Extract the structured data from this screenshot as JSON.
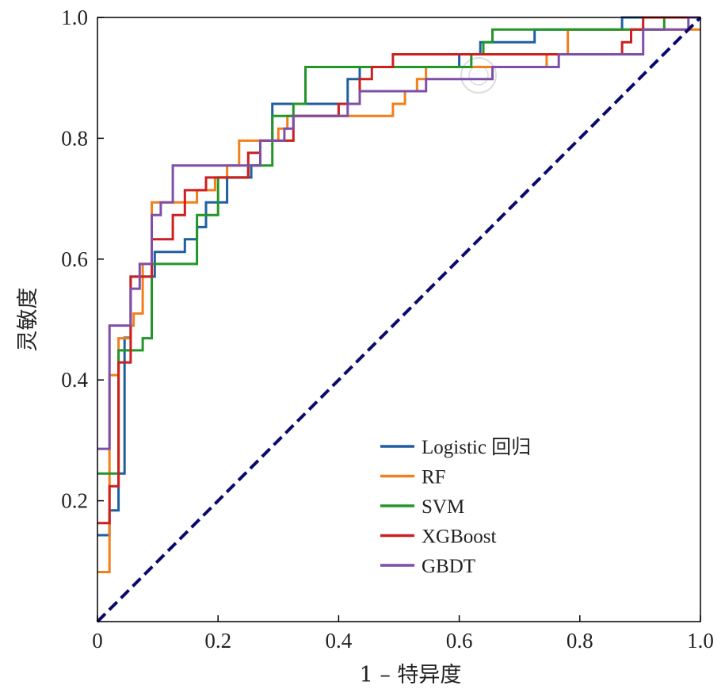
{
  "chart_data": {
    "type": "line",
    "title": "",
    "xlabel": "1 – 特异度",
    "ylabel": "灵敏度",
    "xlim": [
      0,
      1
    ],
    "ylim": [
      0,
      1
    ],
    "grid": false,
    "legend_position": "lower-right",
    "x_ticks": [
      {
        "value": 0,
        "label": "0"
      },
      {
        "value": 0.2,
        "label": "0.2"
      },
      {
        "value": 0.4,
        "label": "0.4"
      },
      {
        "value": 0.6,
        "label": "0.6"
      },
      {
        "value": 0.8,
        "label": "0.8"
      },
      {
        "value": 1.0,
        "label": "1.0"
      }
    ],
    "y_ticks": [
      {
        "value": 0.2,
        "label": "0.2"
      },
      {
        "value": 0.4,
        "label": "0.4"
      },
      {
        "value": 0.6,
        "label": "0.6"
      },
      {
        "value": 0.8,
        "label": "0.8"
      },
      {
        "value": 1.0,
        "label": "1.0"
      }
    ],
    "reference_line": {
      "x": [
        0,
        1
      ],
      "y": [
        0,
        1
      ],
      "color": "#0a0a6e",
      "style": "dashed"
    },
    "series": [
      {
        "name": "Logistic 回归",
        "color": "#1f5fa0",
        "points": [
          [
            0.0,
            0.143
          ],
          [
            0.02,
            0.143
          ],
          [
            0.02,
            0.184
          ],
          [
            0.035,
            0.184
          ],
          [
            0.035,
            0.245
          ],
          [
            0.045,
            0.245
          ],
          [
            0.045,
            0.47
          ],
          [
            0.055,
            0.47
          ],
          [
            0.055,
            0.571
          ],
          [
            0.075,
            0.571
          ],
          [
            0.075,
            0.571
          ],
          [
            0.095,
            0.571
          ],
          [
            0.095,
            0.612
          ],
          [
            0.145,
            0.612
          ],
          [
            0.145,
            0.633
          ],
          [
            0.165,
            0.633
          ],
          [
            0.165,
            0.653
          ],
          [
            0.18,
            0.653
          ],
          [
            0.18,
            0.694
          ],
          [
            0.215,
            0.694
          ],
          [
            0.215,
            0.735
          ],
          [
            0.255,
            0.735
          ],
          [
            0.255,
            0.755
          ],
          [
            0.27,
            0.755
          ],
          [
            0.27,
            0.796
          ],
          [
            0.29,
            0.796
          ],
          [
            0.29,
            0.857
          ],
          [
            0.345,
            0.857
          ],
          [
            0.345,
            0.857
          ],
          [
            0.415,
            0.857
          ],
          [
            0.415,
            0.898
          ],
          [
            0.435,
            0.898
          ],
          [
            0.435,
            0.918
          ],
          [
            0.6,
            0.918
          ],
          [
            0.6,
            0.939
          ],
          [
            0.635,
            0.939
          ],
          [
            0.635,
            0.959
          ],
          [
            0.725,
            0.959
          ],
          [
            0.725,
            0.98
          ],
          [
            0.87,
            0.98
          ],
          [
            0.87,
            1.0
          ],
          [
            1.0,
            1.0
          ]
        ]
      },
      {
        "name": "RF",
        "color": "#f07f1c",
        "points": [
          [
            0.0,
            0.082
          ],
          [
            0.02,
            0.082
          ],
          [
            0.02,
            0.408
          ],
          [
            0.035,
            0.408
          ],
          [
            0.035,
            0.469
          ],
          [
            0.055,
            0.469
          ],
          [
            0.055,
            0.49
          ],
          [
            0.06,
            0.49
          ],
          [
            0.06,
            0.51
          ],
          [
            0.075,
            0.51
          ],
          [
            0.075,
            0.592
          ],
          [
            0.09,
            0.592
          ],
          [
            0.09,
            0.694
          ],
          [
            0.165,
            0.694
          ],
          [
            0.165,
            0.714
          ],
          [
            0.195,
            0.714
          ],
          [
            0.195,
            0.735
          ],
          [
            0.215,
            0.735
          ],
          [
            0.215,
            0.755
          ],
          [
            0.235,
            0.755
          ],
          [
            0.235,
            0.796
          ],
          [
            0.3,
            0.796
          ],
          [
            0.3,
            0.816
          ],
          [
            0.315,
            0.816
          ],
          [
            0.315,
            0.837
          ],
          [
            0.49,
            0.837
          ],
          [
            0.49,
            0.857
          ],
          [
            0.51,
            0.857
          ],
          [
            0.51,
            0.878
          ],
          [
            0.53,
            0.878
          ],
          [
            0.53,
            0.898
          ],
          [
            0.545,
            0.898
          ],
          [
            0.545,
            0.918
          ],
          [
            0.745,
            0.918
          ],
          [
            0.745,
            0.939
          ],
          [
            0.78,
            0.939
          ],
          [
            0.78,
            0.98
          ],
          [
            0.905,
            0.98
          ],
          [
            0.905,
            0.98
          ],
          [
            1.0,
            0.98
          ]
        ]
      },
      {
        "name": "SVM",
        "color": "#229628",
        "points": [
          [
            0.0,
            0.245
          ],
          [
            0.035,
            0.245
          ],
          [
            0.035,
            0.449
          ],
          [
            0.075,
            0.449
          ],
          [
            0.075,
            0.469
          ],
          [
            0.09,
            0.469
          ],
          [
            0.09,
            0.592
          ],
          [
            0.165,
            0.592
          ],
          [
            0.165,
            0.673
          ],
          [
            0.2,
            0.673
          ],
          [
            0.2,
            0.735
          ],
          [
            0.25,
            0.735
          ],
          [
            0.25,
            0.755
          ],
          [
            0.29,
            0.755
          ],
          [
            0.29,
            0.837
          ],
          [
            0.325,
            0.837
          ],
          [
            0.325,
            0.857
          ],
          [
            0.345,
            0.857
          ],
          [
            0.345,
            0.918
          ],
          [
            0.435,
            0.918
          ],
          [
            0.435,
            0.918
          ],
          [
            0.62,
            0.918
          ],
          [
            0.62,
            0.939
          ],
          [
            0.64,
            0.939
          ],
          [
            0.64,
            0.959
          ],
          [
            0.655,
            0.959
          ],
          [
            0.655,
            0.98
          ],
          [
            0.94,
            0.98
          ],
          [
            0.94,
            1.0
          ],
          [
            1.0,
            1.0
          ]
        ]
      },
      {
        "name": "XGBoost",
        "color": "#cc1f1f",
        "points": [
          [
            0.0,
            0.163
          ],
          [
            0.02,
            0.163
          ],
          [
            0.02,
            0.224
          ],
          [
            0.035,
            0.224
          ],
          [
            0.035,
            0.429
          ],
          [
            0.055,
            0.429
          ],
          [
            0.055,
            0.571
          ],
          [
            0.09,
            0.571
          ],
          [
            0.09,
            0.633
          ],
          [
            0.125,
            0.633
          ],
          [
            0.125,
            0.673
          ],
          [
            0.145,
            0.673
          ],
          [
            0.145,
            0.714
          ],
          [
            0.165,
            0.714
          ],
          [
            0.165,
            0.714
          ],
          [
            0.18,
            0.714
          ],
          [
            0.18,
            0.735
          ],
          [
            0.25,
            0.735
          ],
          [
            0.25,
            0.776
          ],
          [
            0.27,
            0.776
          ],
          [
            0.27,
            0.796
          ],
          [
            0.325,
            0.796
          ],
          [
            0.325,
            0.837
          ],
          [
            0.4,
            0.837
          ],
          [
            0.4,
            0.857
          ],
          [
            0.435,
            0.857
          ],
          [
            0.435,
            0.898
          ],
          [
            0.455,
            0.898
          ],
          [
            0.455,
            0.918
          ],
          [
            0.49,
            0.918
          ],
          [
            0.49,
            0.939
          ],
          [
            0.87,
            0.939
          ],
          [
            0.87,
            0.959
          ],
          [
            0.885,
            0.959
          ],
          [
            0.885,
            0.98
          ],
          [
            0.905,
            0.98
          ],
          [
            0.905,
            1.0
          ],
          [
            1.0,
            1.0
          ]
        ]
      },
      {
        "name": "GBDT",
        "color": "#7f4fa8",
        "points": [
          [
            0.0,
            0.286
          ],
          [
            0.02,
            0.286
          ],
          [
            0.02,
            0.49
          ],
          [
            0.055,
            0.49
          ],
          [
            0.055,
            0.551
          ],
          [
            0.07,
            0.551
          ],
          [
            0.07,
            0.592
          ],
          [
            0.09,
            0.592
          ],
          [
            0.09,
            0.673
          ],
          [
            0.105,
            0.673
          ],
          [
            0.105,
            0.694
          ],
          [
            0.125,
            0.694
          ],
          [
            0.125,
            0.755
          ],
          [
            0.27,
            0.755
          ],
          [
            0.27,
            0.796
          ],
          [
            0.31,
            0.796
          ],
          [
            0.31,
            0.816
          ],
          [
            0.325,
            0.816
          ],
          [
            0.325,
            0.837
          ],
          [
            0.415,
            0.837
          ],
          [
            0.415,
            0.857
          ],
          [
            0.435,
            0.857
          ],
          [
            0.435,
            0.878
          ],
          [
            0.545,
            0.878
          ],
          [
            0.545,
            0.898
          ],
          [
            0.655,
            0.898
          ],
          [
            0.655,
            0.918
          ],
          [
            0.765,
            0.918
          ],
          [
            0.765,
            0.939
          ],
          [
            0.905,
            0.939
          ],
          [
            0.905,
            0.98
          ],
          [
            0.98,
            0.98
          ],
          [
            0.98,
            1.0
          ],
          [
            1.0,
            1.0
          ]
        ]
      }
    ]
  }
}
